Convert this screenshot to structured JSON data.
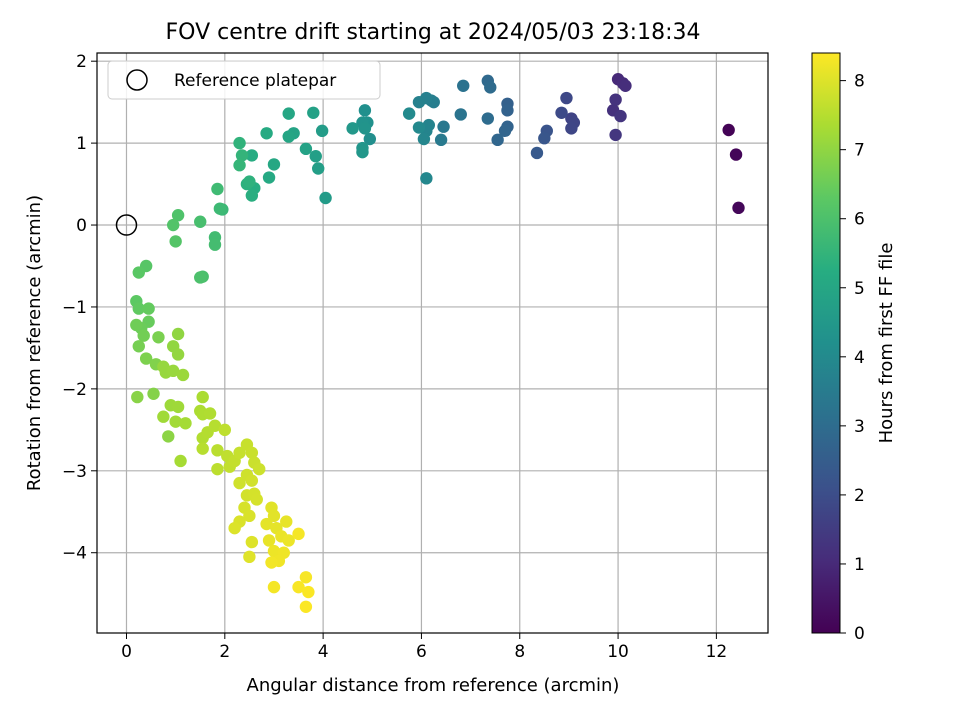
{
  "chart_data": {
    "type": "scatter",
    "title": "FOV centre drift starting at 2024/05/03 23:18:34",
    "xlabel": "Angular distance from reference (arcmin)",
    "ylabel": "Rotation from reference (arcmin)",
    "xlim": [
      -0.6,
      13.05
    ],
    "ylim": [
      -4.98,
      2.1
    ],
    "xticks": [
      0,
      2,
      4,
      6,
      8,
      10,
      12
    ],
    "yticks": [
      -4,
      -3,
      -2,
      -1,
      0,
      1,
      2
    ],
    "grid": true,
    "legend": {
      "placement": "top-left",
      "entries": [
        "Reference platepar"
      ]
    },
    "reference_point": {
      "x": 0,
      "y": 0
    },
    "colorbar": {
      "label": "Hours from first FF file",
      "colormap": "viridis",
      "range": [
        0,
        8.4
      ],
      "ticks": [
        0,
        1,
        2,
        3,
        4,
        5,
        6,
        7,
        8
      ]
    },
    "points": [
      [
        12.25,
        1.16,
        0.05
      ],
      [
        12.4,
        0.86,
        0.1
      ],
      [
        12.45,
        0.21,
        0.15
      ],
      [
        10.0,
        1.78,
        1.0
      ],
      [
        10.1,
        1.73,
        1.05
      ],
      [
        10.15,
        1.7,
        1.1
      ],
      [
        9.9,
        1.4,
        1.2
      ],
      [
        9.95,
        1.53,
        1.25
      ],
      [
        10.05,
        1.33,
        1.3
      ],
      [
        9.95,
        1.1,
        1.35
      ],
      [
        9.05,
        1.3,
        1.7
      ],
      [
        9.1,
        1.25,
        1.75
      ],
      [
        9.05,
        1.18,
        1.8
      ],
      [
        8.95,
        1.55,
        1.85
      ],
      [
        8.85,
        1.37,
        1.9
      ],
      [
        8.55,
        1.15,
        2.2
      ],
      [
        8.5,
        1.06,
        2.25
      ],
      [
        8.35,
        0.88,
        2.35
      ],
      [
        7.75,
        1.48,
        2.6
      ],
      [
        7.75,
        1.4,
        2.65
      ],
      [
        7.75,
        1.2,
        2.7
      ],
      [
        7.7,
        1.15,
        2.75
      ],
      [
        7.55,
        1.04,
        2.8
      ],
      [
        7.35,
        1.76,
        2.9
      ],
      [
        7.4,
        1.68,
        2.95
      ],
      [
        7.35,
        1.3,
        3.0
      ],
      [
        6.85,
        1.7,
        3.2
      ],
      [
        6.8,
        1.35,
        3.25
      ],
      [
        6.45,
        1.2,
        3.4
      ],
      [
        6.4,
        1.04,
        3.45
      ],
      [
        6.25,
        1.5,
        3.55
      ],
      [
        6.2,
        1.52,
        3.6
      ],
      [
        6.1,
        1.55,
        3.65
      ],
      [
        5.95,
        1.5,
        3.7
      ],
      [
        6.15,
        1.22,
        3.75
      ],
      [
        6.1,
        1.15,
        3.8
      ],
      [
        6.05,
        1.05,
        3.85
      ],
      [
        6.1,
        0.57,
        3.9
      ],
      [
        5.95,
        1.19,
        3.95
      ],
      [
        5.75,
        1.36,
        4.0
      ],
      [
        4.95,
        1.05,
        4.15
      ],
      [
        4.85,
        1.4,
        4.2
      ],
      [
        4.9,
        1.25,
        4.25
      ],
      [
        4.8,
        1.25,
        4.3
      ],
      [
        4.85,
        1.18,
        4.35
      ],
      [
        4.8,
        0.94,
        4.4
      ],
      [
        4.8,
        0.89,
        4.45
      ],
      [
        4.6,
        1.18,
        4.5
      ],
      [
        4.05,
        0.33,
        4.6
      ],
      [
        3.98,
        1.15,
        4.65
      ],
      [
        3.9,
        0.69,
        4.7
      ],
      [
        3.85,
        0.84,
        4.75
      ],
      [
        3.8,
        1.37,
        4.8
      ],
      [
        3.65,
        0.93,
        4.85
      ],
      [
        3.4,
        1.12,
        4.9
      ],
      [
        3.3,
        1.08,
        4.95
      ],
      [
        3.3,
        1.36,
        5.0
      ],
      [
        3.0,
        0.74,
        5.05
      ],
      [
        2.9,
        0.58,
        5.1
      ],
      [
        2.85,
        1.12,
        5.15
      ],
      [
        2.55,
        0.85,
        5.2
      ],
      [
        2.6,
        0.45,
        5.25
      ],
      [
        2.55,
        0.36,
        5.3
      ],
      [
        2.45,
        0.5,
        5.35
      ],
      [
        2.5,
        0.53,
        5.4
      ],
      [
        2.3,
        1.0,
        5.45
      ],
      [
        2.35,
        0.85,
        5.5
      ],
      [
        2.3,
        0.73,
        5.55
      ],
      [
        1.95,
        0.19,
        5.65
      ],
      [
        1.9,
        0.2,
        5.7
      ],
      [
        1.85,
        0.44,
        5.75
      ],
      [
        1.8,
        -0.15,
        5.8
      ],
      [
        1.8,
        -0.24,
        5.85
      ],
      [
        1.5,
        0.04,
        5.9
      ],
      [
        1.55,
        -0.63,
        5.95
      ],
      [
        1.5,
        -0.64,
        6.0
      ],
      [
        1.05,
        0.12,
        6.05
      ],
      [
        0.95,
        0.0,
        6.1
      ],
      [
        1.0,
        -0.2,
        6.15
      ],
      [
        0.4,
        -0.5,
        6.2
      ],
      [
        0.25,
        -0.58,
        6.25
      ],
      [
        0.2,
        -0.93,
        6.3
      ],
      [
        0.25,
        -1.02,
        6.35
      ],
      [
        0.45,
        -1.02,
        6.4
      ],
      [
        0.45,
        -1.18,
        6.45
      ],
      [
        0.3,
        -1.26,
        6.5
      ],
      [
        0.2,
        -1.22,
        6.55
      ],
      [
        0.35,
        -1.35,
        6.6
      ],
      [
        0.25,
        -1.48,
        6.65
      ],
      [
        0.65,
        -1.37,
        6.7
      ],
      [
        0.4,
        -1.63,
        6.75
      ],
      [
        0.6,
        -1.7,
        6.8
      ],
      [
        0.55,
        -2.06,
        6.85
      ],
      [
        0.22,
        -2.1,
        6.9
      ],
      [
        0.85,
        -2.58,
        6.95
      ],
      [
        1.05,
        -1.33,
        7.0
      ],
      [
        0.95,
        -1.48,
        7.02
      ],
      [
        1.05,
        -1.58,
        7.05
      ],
      [
        0.75,
        -1.73,
        7.08
      ],
      [
        0.8,
        -1.8,
        7.1
      ],
      [
        0.95,
        -1.78,
        7.12
      ],
      [
        1.15,
        -1.83,
        7.15
      ],
      [
        0.9,
        -2.2,
        7.18
      ],
      [
        1.05,
        -2.22,
        7.2
      ],
      [
        0.75,
        -2.34,
        7.22
      ],
      [
        1.0,
        -2.4,
        7.25
      ],
      [
        1.2,
        -2.42,
        7.28
      ],
      [
        1.1,
        -2.88,
        7.3
      ],
      [
        1.55,
        -2.1,
        7.35
      ],
      [
        1.5,
        -2.27,
        7.38
      ],
      [
        1.55,
        -2.31,
        7.4
      ],
      [
        1.7,
        -2.3,
        7.42
      ],
      [
        1.55,
        -2.6,
        7.45
      ],
      [
        1.65,
        -2.53,
        7.48
      ],
      [
        1.8,
        -2.45,
        7.5
      ],
      [
        1.55,
        -2.73,
        7.52
      ],
      [
        1.85,
        -2.75,
        7.55
      ],
      [
        1.85,
        -2.98,
        7.58
      ],
      [
        2.0,
        -2.5,
        7.6
      ],
      [
        2.05,
        -2.82,
        7.62
      ],
      [
        2.1,
        -2.95,
        7.65
      ],
      [
        2.2,
        -2.88,
        7.68
      ],
      [
        2.3,
        -2.78,
        7.7
      ],
      [
        2.45,
        -2.68,
        7.72
      ],
      [
        2.55,
        -2.78,
        7.74
      ],
      [
        2.6,
        -2.9,
        7.76
      ],
      [
        2.7,
        -2.98,
        7.78
      ],
      [
        2.45,
        -3.05,
        7.8
      ],
      [
        2.3,
        -3.15,
        7.82
      ],
      [
        2.55,
        -3.12,
        7.84
      ],
      [
        2.45,
        -3.3,
        7.86
      ],
      [
        2.6,
        -3.28,
        7.88
      ],
      [
        2.65,
        -3.35,
        7.9
      ],
      [
        2.4,
        -3.45,
        7.92
      ],
      [
        2.5,
        -3.55,
        7.94
      ],
      [
        2.3,
        -3.62,
        7.96
      ],
      [
        2.2,
        -3.7,
        7.98
      ],
      [
        2.55,
        -3.87,
        8.0
      ],
      [
        2.5,
        -4.05,
        8.02
      ],
      [
        2.95,
        -3.45,
        8.04
      ],
      [
        3.0,
        -3.55,
        8.06
      ],
      [
        2.85,
        -3.65,
        8.08
      ],
      [
        3.05,
        -3.7,
        8.1
      ],
      [
        3.25,
        -3.62,
        8.12
      ],
      [
        2.9,
        -3.85,
        8.14
      ],
      [
        3.15,
        -3.8,
        8.16
      ],
      [
        3.3,
        -3.85,
        8.18
      ],
      [
        3.0,
        -3.98,
        8.2
      ],
      [
        3.2,
        -4.0,
        8.22
      ],
      [
        3.1,
        -4.1,
        8.24
      ],
      [
        2.95,
        -4.12,
        8.26
      ],
      [
        3.0,
        -4.42,
        8.28
      ],
      [
        3.5,
        -3.77,
        8.3
      ],
      [
        3.65,
        -4.3,
        8.32
      ],
      [
        3.5,
        -4.42,
        8.34
      ],
      [
        3.7,
        -4.48,
        8.36
      ],
      [
        3.65,
        -4.66,
        8.38
      ]
    ]
  }
}
